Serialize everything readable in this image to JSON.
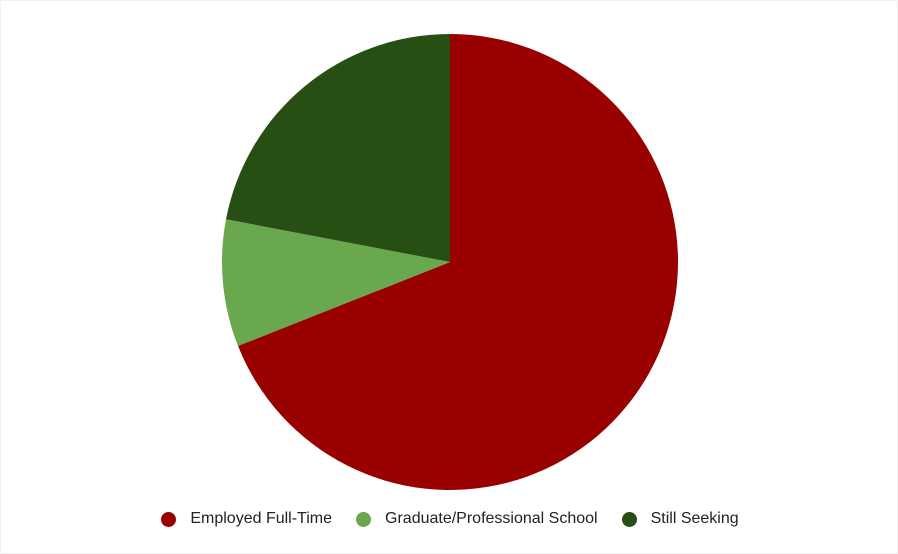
{
  "chart_data": {
    "type": "pie",
    "title": "",
    "slices": [
      {
        "label": "Employed Full-Time",
        "value": 69,
        "color": "#990000"
      },
      {
        "label": "Graduate/Professional School",
        "value": 9,
        "color": "#6aa84f"
      },
      {
        "label": "Still Seeking",
        "value": 22,
        "color": "#274e13"
      }
    ],
    "start_angle_deg": 0,
    "direction": "clockwise",
    "legend_position": "bottom"
  }
}
